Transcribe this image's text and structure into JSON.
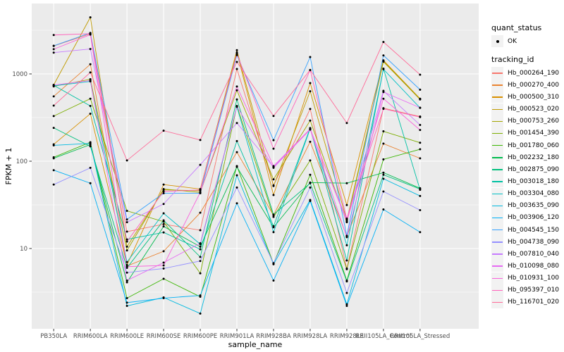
{
  "chart_data": {
    "type": "line",
    "xlabel": "sample_name",
    "ylabel": "FPKM + 1",
    "y_scale": "log10",
    "y_ticks": [
      "10",
      "100",
      "1000"
    ],
    "ylim": [
      1.2,
      5800
    ],
    "grid": "on",
    "legend_position": "right",
    "x_categories": [
      "PB350LA",
      "RRIM600LA",
      "RRIM600LE",
      "RRIM600SE",
      "RRIM600PE",
      "RRIM901LA",
      "RRIM928BA",
      "RRIM928LA",
      "RRIM928LE",
      "RRII105LA_Control",
      "RRII105LA_Stressed"
    ],
    "legend": {
      "quant_status_title": "quant_status",
      "quant_status_items": [
        {
          "label": "OK"
        }
      ],
      "tracking_id_title": "tracking_id"
    },
    "series": [
      {
        "name": "Hb_000264_190",
        "color": "#F8766D",
        "values": [
          2090,
          2880,
          15.6,
          19,
          16.2,
          1140,
          53,
          397,
          5.9,
          405,
          325
        ]
      },
      {
        "name": "Hb_000270_400",
        "color": "#EA8331",
        "values": [
          553,
          1290,
          6.3,
          9.3,
          25.7,
          127,
          24,
          167,
          13.8,
          159,
          108
        ]
      },
      {
        "name": "Hb_000500_310",
        "color": "#D89000",
        "values": [
          156,
          350,
          6.5,
          54,
          48,
          1760,
          41,
          785,
          31.5,
          1430,
          520
        ]
      },
      {
        "name": "Hb_000523_020",
        "color": "#C09B00",
        "values": [
          750,
          4450,
          10.5,
          47,
          46,
          1870,
          52,
          633,
          21,
          1400,
          515
        ]
      },
      {
        "name": "Hb_000753_260",
        "color": "#A3A500",
        "values": [
          720,
          870,
          9.5,
          48,
          44,
          650,
          62,
          292,
          20,
          1380,
          510
        ]
      },
      {
        "name": "Hb_001454_390",
        "color": "#7CAE00",
        "values": [
          329,
          520,
          27,
          20.3,
          5.2,
          430,
          23,
          102,
          5.8,
          220,
          163
        ]
      },
      {
        "name": "Hb_001780_060",
        "color": "#39B600",
        "values": [
          111,
          165,
          2.7,
          4.5,
          2.8,
          88,
          6.7,
          70,
          4.3,
          105,
          137
        ]
      },
      {
        "name": "Hb_002232_180",
        "color": "#00BB4E",
        "values": [
          108,
          155,
          4.1,
          17.9,
          10.5,
          86,
          17.5,
          57,
          56,
          74,
          49
        ]
      },
      {
        "name": "Hb_002875_090",
        "color": "#00BF7D",
        "values": [
          241,
          148,
          6.0,
          21,
          8.0,
          510,
          24.5,
          56,
          4.2,
          70,
          48
        ]
      },
      {
        "name": "Hb_003018_180",
        "color": "#00C1A3",
        "values": [
          740,
          430,
          12.7,
          15.3,
          9.8,
          170,
          18,
          240,
          7.3,
          1150,
          47
        ]
      },
      {
        "name": "Hb_003304_080",
        "color": "#00BFC4",
        "values": [
          730,
          820,
          7.0,
          25.3,
          11.2,
          420,
          15.4,
          236,
          10.9,
          1130,
          408
        ]
      },
      {
        "name": "Hb_003635_090",
        "color": "#00BAE0",
        "values": [
          152,
          160,
          2.2,
          2.75,
          1.8,
          69,
          6.6,
          36,
          2.3,
          63,
          40
        ]
      },
      {
        "name": "Hb_003906_120",
        "color": "#00B0F6",
        "values": [
          79,
          56,
          2.4,
          2.7,
          2.9,
          33,
          4.3,
          35,
          2.2,
          28,
          15.4
        ]
      },
      {
        "name": "Hb_004545_150",
        "color": "#35A2FF",
        "values": [
          2100,
          2950,
          21.5,
          43,
          43,
          1640,
          174,
          1560,
          14,
          1630,
          660
        ]
      },
      {
        "name": "Hb_004738_090",
        "color": "#9590FF",
        "values": [
          54,
          84,
          5.3,
          5.9,
          7.2,
          50,
          6.8,
          50,
          3.1,
          45,
          27.5
        ]
      },
      {
        "name": "Hb_007810_040",
        "color": "#C77CFF",
        "values": [
          1755,
          1930,
          20,
          32.4,
          91,
          274,
          86,
          230,
          21.5,
          640,
          260
        ]
      },
      {
        "name": "Hb_010098_080",
        "color": "#E76BF3",
        "values": [
          745,
          840,
          4.3,
          6.9,
          11.5,
          425,
          84,
          232,
          13.5,
          620,
          410
        ]
      },
      {
        "name": "Hb_010931_100",
        "color": "#FA62DB",
        "values": [
          1920,
          2820,
          6.2,
          6.4,
          44,
          717,
          88,
          234,
          20.5,
          520,
          228
        ]
      },
      {
        "name": "Hb_095397_010",
        "color": "#FF62BC",
        "values": [
          2790,
          2890,
          12,
          45,
          47,
          1700,
          139,
          1105,
          22,
          398,
          320
        ]
      },
      {
        "name": "Hb_116701_020",
        "color": "#FF6A98",
        "values": [
          434,
          1040,
          102,
          224,
          175,
          1370,
          330,
          1110,
          274,
          2320,
          980
        ]
      }
    ]
  },
  "colors": {
    "panel_bg": "#EBEBEB",
    "gridline": "#FFFFFF",
    "point": "#000000",
    "tick": "#333333",
    "axis_text": "#4D4D4D",
    "legend_key_bg": "#F2F2F2"
  }
}
